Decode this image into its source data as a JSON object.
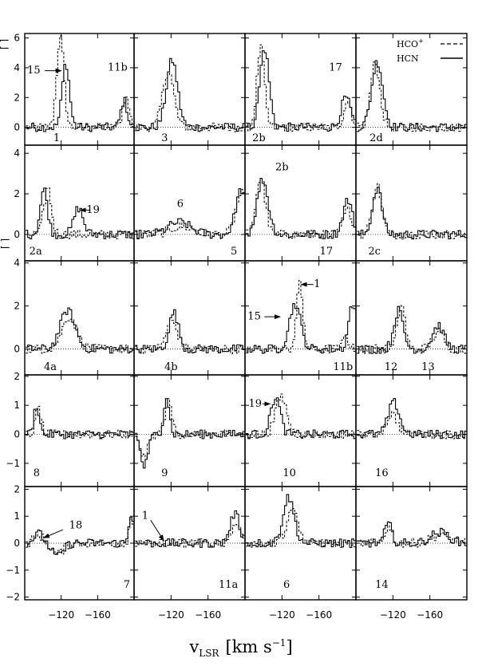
{
  "chart_data": {
    "type": "line",
    "layout": "5 rows x 4 columns of spectral panels sharing axes",
    "x_axis": {
      "label": "v",
      "label_subscript": "LSR",
      "label_units": "[km s",
      "label_units_sup": "−1",
      "label_units_close": "]",
      "range": [
        -80,
        -200
      ],
      "ticks": [
        -120,
        -160
      ],
      "tick_labels": [
        "−120",
        "−160"
      ]
    },
    "y_axis_fragments": [
      "⌈ ⌉",
      "⌈ ⌉"
    ],
    "rows": [
      {
        "ylim": [
          -1.2,
          6.3
        ],
        "yticks": [
          0,
          2,
          4,
          6
        ],
        "ytick_labels": [
          "0",
          "2",
          "4",
          "6"
        ]
      },
      {
        "ylim": [
          -1.3,
          4.4
        ],
        "yticks": [
          0,
          2,
          4
        ],
        "ytick_labels": [
          "0",
          "2",
          "4"
        ]
      },
      {
        "ylim": [
          -1.2,
          4.1
        ],
        "yticks": [
          0,
          2,
          4
        ],
        "ytick_labels": [
          "0",
          "2",
          "4"
        ]
      },
      {
        "ylim": [
          -1.8,
          2.05
        ],
        "yticks": [
          -1,
          0,
          1,
          2
        ],
        "ytick_labels": [
          "−1",
          "0",
          "1",
          "2"
        ]
      },
      {
        "ylim": [
          -2.1,
          2.1
        ],
        "yticks": [
          -2,
          -1,
          0,
          1,
          2
        ],
        "ytick_labels": [
          "−2",
          "−1",
          "0",
          "1",
          "2"
        ]
      }
    ],
    "legend": {
      "position": "top-right",
      "entries": [
        {
          "name": "HCO",
          "sup": "+",
          "style": "dashed"
        },
        {
          "name": "HCN",
          "sup": "",
          "style": "solid"
        }
      ]
    },
    "series": [
      {
        "name": "HCO+",
        "style": "dashed"
      },
      {
        "name": "HCN",
        "style": "solid"
      }
    ],
    "panels": [
      {
        "row": 0,
        "col": 0,
        "labels": [
          {
            "text": "1",
            "at": [
              -115,
              -0.75
            ]
          },
          {
            "text": "15",
            "at": [
              -90,
              3.8
            ]
          },
          {
            "text": "11b",
            "at": [
              -182,
              4.0
            ]
          }
        ],
        "arrows": [
          {
            "from": [
              -102,
              3.8
            ],
            "to": [
              -120,
              3.8
            ]
          }
        ],
        "components": {
          "HCN": [
            [
              -124,
              4.3,
              4
            ],
            [
              -188,
              1.8,
              3.5
            ]
          ],
          "HCO+": [
            [
              -118,
              6.0,
              4
            ],
            [
              -190,
              2.0,
              3.5
            ]
          ]
        }
      },
      {
        "row": 0,
        "col": 1,
        "labels": [
          {
            "text": "3",
            "at": [
              -113,
              -0.75
            ]
          }
        ],
        "arrows": [],
        "components": {
          "HCN": [
            [
              -120,
              4.5,
              6
            ]
          ],
          "HCO+": [
            [
              -116,
              3.8,
              6
            ]
          ]
        }
      },
      {
        "row": 0,
        "col": 2,
        "labels": [
          {
            "text": "2b",
            "at": [
              -95,
              -0.75
            ]
          },
          {
            "text": "17",
            "at": [
              -178,
              4.0
            ]
          }
        ],
        "arrows": [],
        "components": {
          "HCN": [
            [
              -100,
              5.3,
              5
            ],
            [
              -188,
              2.0,
              5
            ]
          ],
          "HCO+": [
            [
              -96,
              5.3,
              4
            ],
            [
              -190,
              1.8,
              4
            ]
          ]
        }
      },
      {
        "row": 0,
        "col": 3,
        "labels": [
          {
            "text": "2d",
            "at": [
              -102,
              -0.75
            ]
          }
        ],
        "arrows": [],
        "components": {
          "HCN": [
            [
              -102,
              4.4,
              6
            ]
          ],
          "HCO+": [
            [
              -100,
              4.3,
              5
            ]
          ]
        }
      },
      {
        "row": 1,
        "col": 0,
        "labels": [
          {
            "text": "2a",
            "at": [
              -92,
              -0.85
            ]
          },
          {
            "text": "19",
            "at": [
              -155,
              1.2
            ]
          }
        ],
        "arrows": [
          {
            "from": [
              -152,
              1.2
            ],
            "to": [
              -141,
              1.2
            ]
          }
        ],
        "components": {
          "HCN": [
            [
              -100,
              2.2,
              4
            ],
            [
              -138,
              1.3,
              5
            ]
          ],
          "HCO+": [
            [
              -104,
              2.3,
              4
            ]
          ]
        }
      },
      {
        "row": 1,
        "col": 1,
        "labels": [
          {
            "text": "6",
            "at": [
              -130,
              1.5
            ]
          },
          {
            "text": "5",
            "at": [
              -188,
              -0.85
            ]
          }
        ],
        "arrows": [],
        "components": {
          "HCN": [
            [
              -128,
              0.6,
              12
            ],
            [
              -195,
              2.2,
              6
            ]
          ],
          "HCO+": [
            [
              -130,
              0.4,
              12
            ],
            [
              -195,
              2.0,
              6
            ]
          ]
        }
      },
      {
        "row": 1,
        "col": 2,
        "labels": [
          {
            "text": "2b",
            "at": [
              -120,
              3.3
            ]
          },
          {
            "text": "17",
            "at": [
              -168,
              -0.85
            ]
          }
        ],
        "arrows": [],
        "components": {
          "HCN": [
            [
              -98,
              2.7,
              6
            ],
            [
              -190,
              1.7,
              5
            ]
          ],
          "HCO+": [
            [
              -96,
              2.8,
              5
            ],
            [
              -190,
              1.2,
              5
            ]
          ]
        }
      },
      {
        "row": 1,
        "col": 3,
        "labels": [
          {
            "text": "2c",
            "at": [
              -100,
              -0.85
            ]
          }
        ],
        "arrows": [],
        "components": {
          "HCN": [
            [
              -102,
              2.3,
              5
            ]
          ],
          "HCO+": [
            [
              -102,
              2.4,
              5
            ]
          ]
        }
      },
      {
        "row": 2,
        "col": 0,
        "labels": [
          {
            "text": "4a",
            "at": [
              -108,
              -0.85
            ]
          }
        ],
        "arrows": [],
        "components": {
          "HCN": [
            [
              -126,
              1.8,
              8
            ]
          ],
          "HCO+": [
            [
              -128,
              1.5,
              8
            ]
          ]
        }
      },
      {
        "row": 2,
        "col": 1,
        "labels": [
          {
            "text": "4b",
            "at": [
              -120,
              -0.85
            ]
          }
        ],
        "arrows": [],
        "components": {
          "HCN": [
            [
              -122,
              1.7,
              5
            ]
          ],
          "HCO+": [
            [
              -120,
              1.3,
              6
            ]
          ]
        }
      },
      {
        "row": 2,
        "col": 2,
        "labels": [
          {
            "text": "11b",
            "at": [
              -186,
              -0.85
            ]
          },
          {
            "text": "1",
            "at": [
              -158,
              3.0
            ]
          },
          {
            "text": "15",
            "at": [
              -90,
              1.5
            ]
          }
        ],
        "arrows": [
          {
            "from": [
              -154,
              3.0
            ],
            "to": [
              -141,
              3.0
            ]
          },
          {
            "from": [
              -101,
              1.5
            ],
            "to": [
              -118,
              1.5
            ]
          }
        ],
        "components": {
          "HCN": [
            [
              -133,
              2.1,
              6
            ],
            [
              -195,
              2.1,
              4
            ]
          ],
          "HCO+": [
            [
              -138,
              3.0,
              3.5
            ],
            [
              -188,
              0.6,
              3
            ]
          ]
        }
      },
      {
        "row": 2,
        "col": 3,
        "labels": [
          {
            "text": "12",
            "at": [
              -118,
              -0.85
            ]
          },
          {
            "text": "13",
            "at": [
              -158,
              -0.85
            ]
          }
        ],
        "arrows": [],
        "components": {
          "HCN": [
            [
              -125,
              1.8,
              5
            ],
            [
              -168,
              1.1,
              6
            ]
          ],
          "HCO+": [
            [
              -128,
              2.1,
              4
            ],
            [
              -168,
              0.8,
              6
            ]
          ]
        }
      },
      {
        "row": 3,
        "col": 0,
        "labels": [
          {
            "text": "8",
            "at": [
              -93,
              -1.35
            ]
          }
        ],
        "arrows": [],
        "components": {
          "HCN": [
            [
              -92,
              1.0,
              3
            ]
          ],
          "HCO+": [
            [
              -94,
              0.9,
              3
            ]
          ]
        }
      },
      {
        "row": 3,
        "col": 1,
        "labels": [
          {
            "text": "9",
            "at": [
              -113,
              -1.35
            ]
          }
        ],
        "arrows": [],
        "components": {
          "HCN": [
            [
              -90,
              -1.1,
              4
            ],
            [
              -114,
              1.3,
              3
            ]
          ],
          "HCO+": [
            [
              -90,
              -0.8,
              4
            ],
            [
              -116,
              1.1,
              4
            ]
          ]
        }
      },
      {
        "row": 3,
        "col": 2,
        "labels": [
          {
            "text": "10",
            "at": [
              -128,
              -1.35
            ]
          },
          {
            "text": "19",
            "at": [
              -91,
              1.05
            ]
          }
        ],
        "arrows": [
          {
            "from": [
              -99,
              1.05
            ],
            "to": [
              -107,
              1.05
            ]
          }
        ],
        "components": {
          "HCN": [
            [
              -112,
              1.3,
              5
            ]
          ],
          "HCO+": [
            [
              -118,
              1.3,
              6
            ]
          ]
        }
      },
      {
        "row": 3,
        "col": 3,
        "labels": [
          {
            "text": "16",
            "at": [
              -108,
              -1.35
            ]
          }
        ],
        "arrows": [],
        "components": {
          "HCN": [
            [
              -120,
              1.1,
              6
            ]
          ],
          "HCO+": [
            [
              -118,
              0.7,
              6
            ]
          ]
        }
      },
      {
        "row": 4,
        "col": 0,
        "labels": [
          {
            "text": "7",
            "at": [
              -192,
              -1.55
            ]
          },
          {
            "text": "18",
            "at": [
              -136,
              0.65
            ]
          }
        ],
        "arrows": [
          {
            "from": [
              -122,
              0.5
            ],
            "to": [
              -101,
              0.2
            ]
          }
        ],
        "components": {
          "HCN": [
            [
              -94,
              0.35,
              5
            ],
            [
              -115,
              -0.5,
              6
            ],
            [
              -196,
              1.1,
              2.5
            ]
          ],
          "HCO+": [
            [
              -94,
              0.3,
              5
            ],
            [
              -115,
              -0.4,
              6
            ],
            [
              -196,
              0.9,
              2.5
            ]
          ]
        }
      },
      {
        "row": 4,
        "col": 1,
        "labels": [
          {
            "text": "11a",
            "at": [
              -182,
              -1.55
            ]
          },
          {
            "text": "1",
            "at": [
              -92,
              1.0
            ]
          }
        ],
        "arrows": [
          {
            "from": [
              -98,
              0.85
            ],
            "to": [
              -112,
              0.1
            ]
          }
        ],
        "components": {
          "HCN": [
            [
              -188,
              1.1,
              5
            ]
          ],
          "HCO+": [
            [
              -190,
              0.7,
              6
            ]
          ]
        }
      },
      {
        "row": 4,
        "col": 2,
        "labels": [
          {
            "text": "6",
            "at": [
              -125,
              -1.55
            ]
          }
        ],
        "arrows": [],
        "components": {
          "HCN": [
            [
              -126,
              1.7,
              6
            ]
          ],
          "HCO+": [
            [
              -130,
              1.2,
              6
            ]
          ]
        }
      },
      {
        "row": 4,
        "col": 3,
        "labels": [
          {
            "text": "14",
            "at": [
              -108,
              -1.55
            ]
          }
        ],
        "arrows": [],
        "components": {
          "HCN": [
            [
              -114,
              0.7,
              4
            ],
            [
              -170,
              0.4,
              10
            ]
          ],
          "HCO+": [
            [
              -114,
              0.6,
              4
            ],
            [
              -170,
              0.3,
              10
            ]
          ]
        }
      }
    ]
  }
}
